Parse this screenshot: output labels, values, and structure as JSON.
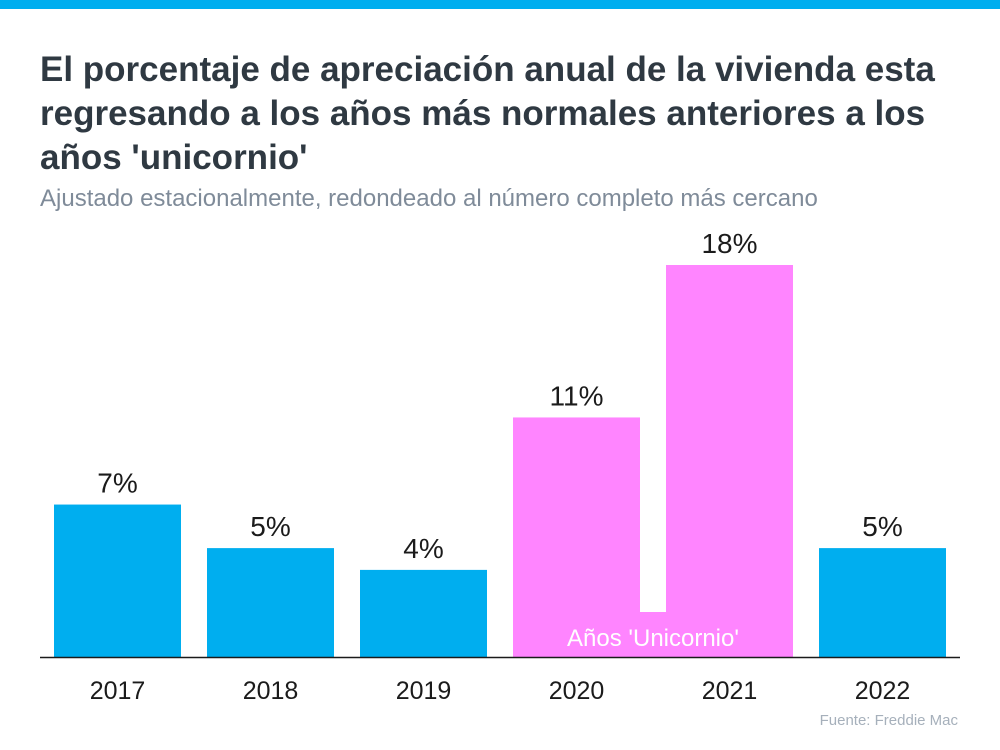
{
  "colors": {
    "top_bar": "#00aeef",
    "bar_normal": "#00aeef",
    "bar_unicorn": "#ff85ff",
    "axis": "#1b1b1b"
  },
  "chart_data": {
    "type": "bar",
    "title": "El porcentaje de apreciación anual de la vivienda esta regresando a los años más normales anteriores a los años 'unicornio'",
    "subtitle": "Ajustado estacionalmente, redondeado al número completo más cercano",
    "categories": [
      "2017",
      "2018",
      "2019",
      "2020",
      "2021",
      "2022"
    ],
    "values": [
      7,
      5,
      4,
      11,
      18,
      5
    ],
    "value_labels": [
      "7%",
      "5%",
      "4%",
      "11%",
      "18%",
      "5%"
    ],
    "highlighted": [
      false,
      false,
      false,
      true,
      true,
      false
    ],
    "highlight_region_label": "Años 'Unicornio'",
    "ylim": [
      0,
      18
    ],
    "grid": false,
    "source": "Fuente: Freddie Mac"
  }
}
